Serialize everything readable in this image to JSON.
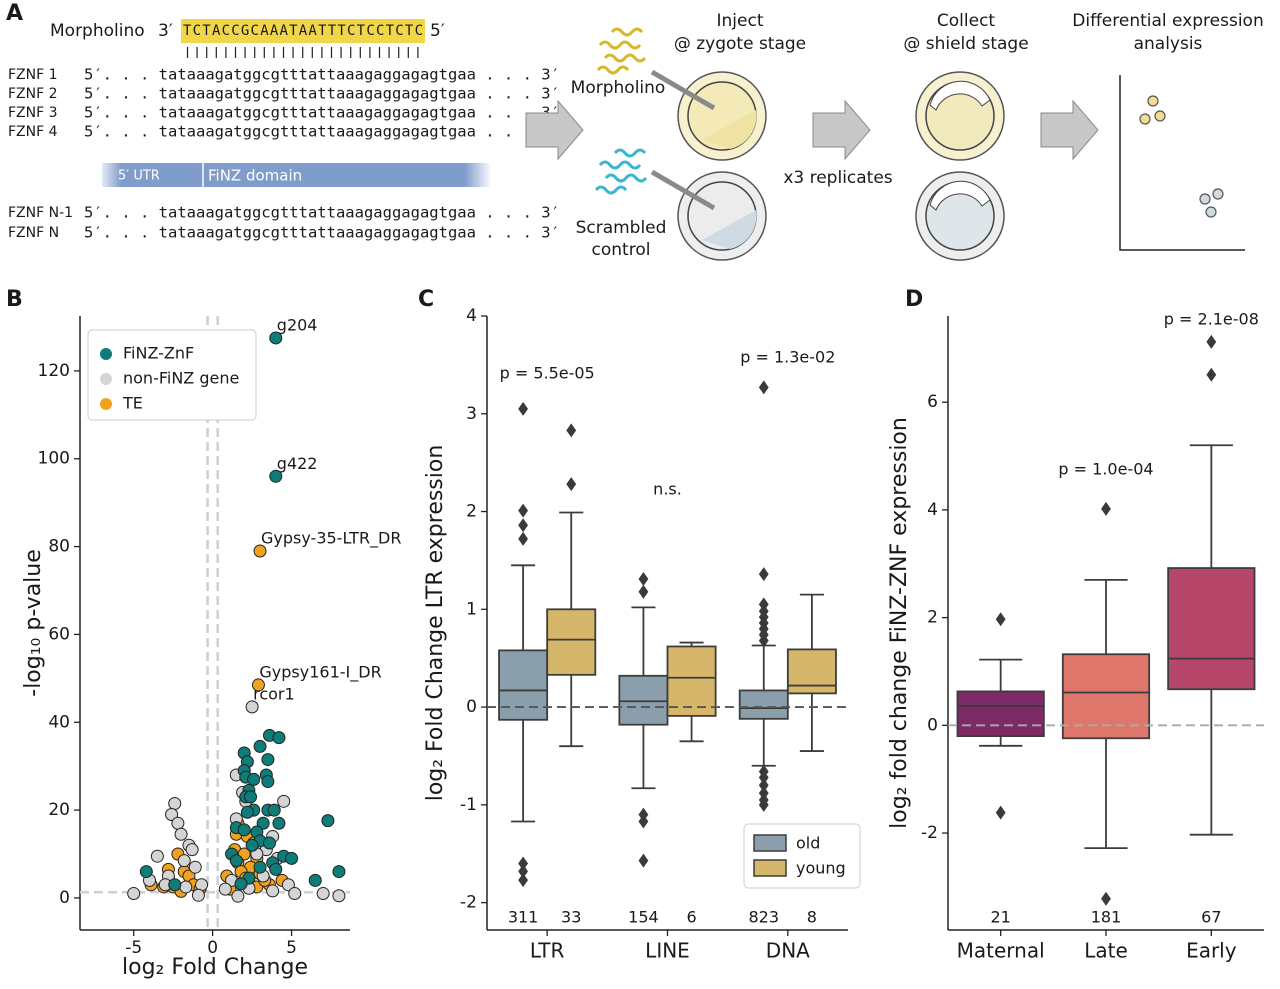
{
  "panel_a": {
    "label": "A",
    "morpholino": {
      "name": "Morpholino",
      "left_end": "3′",
      "sequence": "TCTACCGCAAATAATTTCTCCTCTC",
      "right_end": "5′"
    },
    "genes": [
      {
        "name": "FZNF 1",
        "sequence": "5′. . . tataaagatggcgtttattaaagaggagagtgaa . . . 3′"
      },
      {
        "name": "FZNF 2",
        "sequence": "5′. . . tataaagatggcgtttattaaagaggagagtgaa . . . 3′"
      },
      {
        "name": "FZNF 3",
        "sequence": "5′. . . tataaagatggcgtttattaaagaggagagtgaa . . . 3′"
      },
      {
        "name": "FZNF 4",
        "sequence": "5′. . . tataaagatggcgtttattaaagaggagagtgaa . . . 3′"
      },
      {
        "name": "FZNF N-1",
        "sequence": "5′. . . tataaagatggcgtttattaaagaggagagtgaa . . . 3′"
      },
      {
        "name": "FZNF N",
        "sequence": "5′. . . tataaagatggcgtttattaaagaggagagtgaa . . . 3′"
      }
    ],
    "domains": [
      "5′ UTR",
      "FiNZ domain"
    ],
    "inject": [
      "Inject",
      "@ zygote stage"
    ],
    "conditions": {
      "treatment": "Morpholino",
      "control": [
        "Scrambled",
        "control"
      ]
    },
    "replicates": "x3 replicates",
    "collect": [
      "Collect",
      "@ shield stage"
    ],
    "analysis": [
      "Differential expression",
      "analysis"
    ]
  },
  "chart_data": [
    {
      "type": "scatter",
      "panel": "B",
      "xlabel": "log₂ Fold Change",
      "ylabel": "-log₁₀ p-value",
      "xlim": [
        -8.4,
        8.7
      ],
      "ylim": [
        -7.3,
        132.5
      ],
      "xticks": [
        -5,
        0,
        5
      ],
      "yticks": [
        0,
        20,
        40,
        60,
        80,
        100,
        120
      ],
      "thresholds": {
        "x": [
          -0.32,
          0.32
        ],
        "y": 1.3
      },
      "legend": "upper left",
      "series": [
        {
          "name": "FiNZ-ZnF",
          "color": "#0e7c78",
          "x": [
            4,
            4,
            3.6,
            3,
            4.2,
            2,
            2.2,
            3.5,
            2,
            2.1,
            2.6,
            3.4,
            2.3,
            3.5,
            2.1,
            2.4,
            2.6,
            2.2,
            3.5,
            3.9,
            3.2,
            4.2,
            7.3,
            1.5,
            2,
            2.8,
            3,
            3.6,
            2.5,
            4.5,
            5,
            3.8,
            1.2,
            1.5,
            3,
            4,
            -4.2,
            -2.4,
            6.5,
            8,
            2.3,
            1.8
          ],
          "y": [
            127.5,
            96,
            37,
            34.5,
            36.5,
            33,
            31,
            31.5,
            29,
            27.5,
            27,
            28,
            24.5,
            26.5,
            23,
            23,
            20,
            19.5,
            20,
            20,
            17,
            17,
            17.6,
            16,
            15.5,
            15,
            13,
            12.5,
            12,
            9.5,
            9,
            8,
            10,
            8.5,
            7,
            6.5,
            6,
            3,
            4,
            6,
            4.5,
            3.2
          ],
          "labels": [
            "g204",
            "g422",
            null,
            null,
            null,
            null,
            null,
            null,
            null,
            null,
            null,
            null,
            null,
            null,
            null,
            null,
            null,
            null,
            null,
            null,
            null,
            null,
            null,
            null,
            null,
            null,
            null,
            null,
            null,
            null,
            null,
            null,
            null,
            null,
            null,
            null,
            null,
            null,
            null,
            null,
            null,
            null
          ]
        },
        {
          "name": "non-FiNZ gene",
          "color": "#d4d4d4",
          "x": [
            2.5,
            -2.4,
            -2.6,
            -2.2,
            -2,
            -1.5,
            -1.3,
            -3.5,
            -1.8,
            -1.1,
            -2.8,
            -4,
            -3,
            -1.7,
            1.5,
            1.9,
            2.1,
            1.5,
            3.8,
            4.5,
            3.4,
            2.8,
            4.1,
            3.2,
            4.8,
            1.2,
            0.8,
            -0.7,
            5.2,
            7,
            8,
            -5,
            -0.9,
            1.6,
            2.3,
            3.8
          ],
          "y": [
            43.5,
            21.5,
            19,
            17,
            14.5,
            12,
            11,
            9.5,
            8.5,
            7,
            5,
            4,
            3,
            2.5,
            28,
            24,
            22,
            18,
            14,
            22,
            11,
            10,
            9,
            5,
            3,
            4,
            2,
            3,
            1,
            1,
            0.5,
            1,
            0.6,
            0.4,
            2.2,
            1.6
          ],
          "labels": [
            "rcor1",
            null,
            null,
            null,
            null,
            null,
            null,
            null,
            null,
            null,
            null,
            null,
            null,
            null,
            null,
            null,
            null,
            null,
            null,
            null,
            null,
            null,
            null,
            null,
            null,
            null,
            null,
            null,
            null,
            null,
            null,
            null,
            null,
            null,
            null,
            null
          ]
        },
        {
          "name": "TE",
          "color": "#f0a11f",
          "x": [
            3,
            2.9,
            1.6,
            1.5,
            2.2,
            2.6,
            1.4,
            2,
            2.8,
            1.6,
            2.4,
            1.8,
            3,
            2.1,
            3.6,
            1.3,
            2.8,
            -1.8,
            -2.2,
            -1.5,
            -2.5,
            -3.1,
            -3.9,
            -2.8,
            -1.2,
            -0.8,
            0.9,
            4.4,
            1.1,
            -2,
            3.3
          ],
          "y": [
            79,
            48.5,
            17,
            14.5,
            14,
            12.5,
            11,
            10,
            9,
            8,
            7,
            6,
            5.5,
            4.5,
            3,
            3.5,
            2.5,
            6,
            10,
            5,
            2.5,
            2.5,
            3,
            6.5,
            3,
            2,
            5,
            4,
            2,
            1.5,
            4
          ],
          "labels": [
            "Gypsy-35-LTR_DR",
            "Gypsy161-I_DR",
            null,
            null,
            null,
            null,
            null,
            null,
            null,
            null,
            null,
            null,
            null,
            null,
            null,
            null,
            null,
            null,
            null,
            null,
            null,
            null,
            null,
            null,
            null,
            null,
            null,
            null,
            null,
            null,
            null
          ]
        }
      ]
    },
    {
      "type": "box",
      "panel": "C",
      "ylabel": "log₂ Fold Change LTR expression",
      "ylim": [
        -2.28,
        4.0
      ],
      "yticks": [
        -2,
        -1,
        0,
        1,
        2,
        3,
        4
      ],
      "hline": 0,
      "legend": "lower right",
      "categories": [
        "LTR",
        "LINE",
        "DNA"
      ],
      "annotations": [
        "p = 5.5e-05",
        "n.s.",
        "p = 1.3e-02"
      ],
      "series": [
        {
          "name": "old",
          "color": "#8a9fab",
          "n": [
            311,
            154,
            823
          ],
          "boxes": [
            {
              "low": -1.17,
              "q1": -0.13,
              "median": 0.17,
              "q3": 0.58,
              "high": 1.45,
              "outliers": [
                3.05,
                2.01,
                1.86,
                1.72,
                -1.6,
                -1.68,
                -1.77
              ]
            },
            {
              "low": -0.83,
              "q1": -0.18,
              "median": 0.06,
              "q3": 0.32,
              "high": 1.02,
              "outliers": [
                1.31,
                1.18,
                -1.1,
                -1.17,
                -1.57
              ]
            },
            {
              "low": -0.6,
              "q1": -0.12,
              "median": -0.01,
              "q3": 0.17,
              "high": 0.63,
              "outliers": [
                3.27,
                1.36,
                1.05,
                0.98,
                0.92,
                0.86,
                0.8,
                0.74,
                0.68,
                -0.66,
                -0.72,
                -0.8,
                -0.88,
                -0.95,
                -1.0
              ]
            }
          ]
        },
        {
          "name": "young",
          "color": "#d6b66a",
          "n": [
            33,
            6,
            8
          ],
          "boxes": [
            {
              "low": -0.4,
              "q1": 0.33,
              "median": 0.69,
              "q3": 1.0,
              "high": 1.99,
              "outliers": [
                2.83,
                2.28
              ]
            },
            {
              "low": -0.35,
              "q1": -0.09,
              "median": 0.3,
              "q3": 0.62,
              "high": 0.66,
              "outliers": []
            },
            {
              "low": -0.45,
              "q1": 0.14,
              "median": 0.22,
              "q3": 0.59,
              "high": 1.15,
              "outliers": []
            }
          ]
        }
      ]
    },
    {
      "type": "box",
      "panel": "D",
      "ylabel": "log₂ fold change FiNZ-ZNF expression",
      "ylim": [
        -3.8,
        7.6
      ],
      "yticks": [
        -2,
        0,
        2,
        4,
        6
      ],
      "hline": 0,
      "categories": [
        "Maternal",
        "Late",
        "Early"
      ],
      "annotations": [
        null,
        "p = 1.0e-04",
        "p = 2.1e-08"
      ],
      "colors": [
        "#7d2a67",
        "#df766b",
        "#b6476b"
      ],
      "n": [
        21,
        181,
        67
      ],
      "boxes": [
        {
          "low": -0.38,
          "q1": -0.2,
          "median": 0.36,
          "q3": 0.63,
          "high": 1.22,
          "outliers": [
            1.97,
            -1.62
          ]
        },
        {
          "low": -2.28,
          "q1": -0.24,
          "median": 0.61,
          "q3": 1.32,
          "high": 2.7,
          "outliers": [
            4.02,
            -3.22
          ]
        },
        {
          "low": -2.03,
          "q1": 0.67,
          "median": 1.24,
          "q3": 2.92,
          "high": 5.2,
          "outliers": [
            7.12,
            6.51
          ]
        }
      ]
    }
  ]
}
